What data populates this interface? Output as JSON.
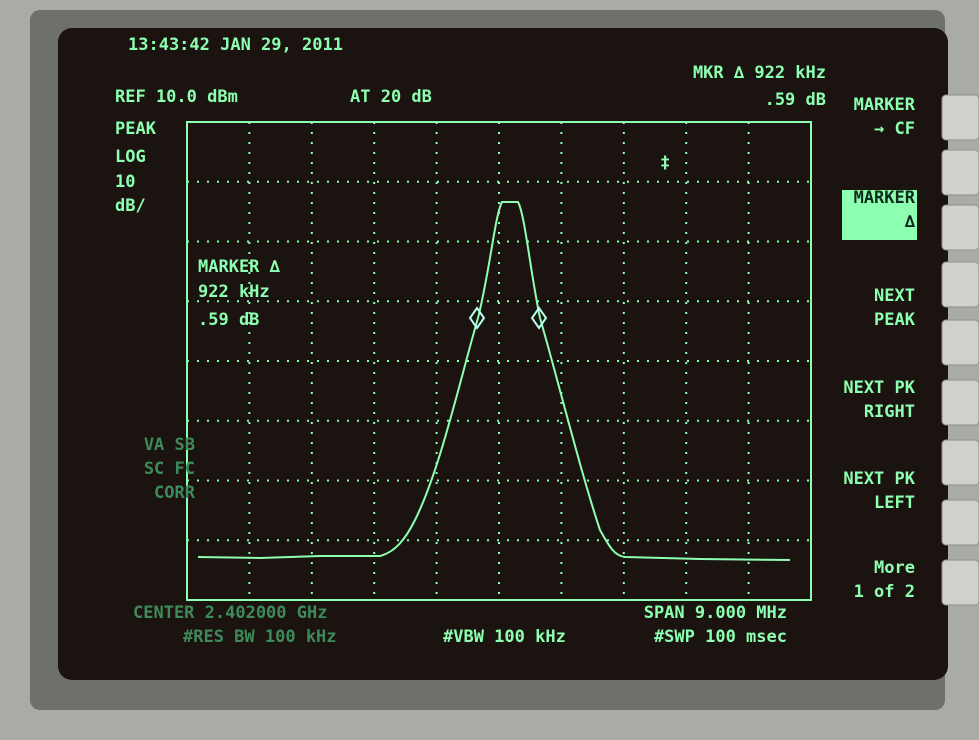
{
  "header": {
    "timestamp": "13:43:42 JAN 29, 2011",
    "ref_level": "REF 10.0 dBm",
    "attenuation": "AT 20 dB",
    "marker_readout": [
      "MKR ∆ 922 kHz",
      ".59 dB"
    ]
  },
  "left_panel": {
    "lines": [
      "PEAK",
      "LOG",
      "10",
      "dB/"
    ],
    "status": [
      "VA SB",
      "SC FC",
      "CORR"
    ]
  },
  "marker_annotation": [
    "MARKER ∆",
    "922 kHz",
    ".59 dB"
  ],
  "footer": {
    "center": "CENTER 2.402000 GHz",
    "res_bw": "#RES BW 100 kHz",
    "vbw": "#VBW 100 kHz",
    "span": "SPAN 9.000 MHz",
    "sweep": "#SWP 100 msec"
  },
  "softkeys": [
    {
      "lines": [
        "MARKER",
        "→ CF"
      ]
    },
    {
      "lines": [
        "MARKER",
        "∆"
      ]
    },
    {
      "lines": [
        "NEXT",
        "PEAK"
      ]
    },
    {
      "lines": [
        "NEXT PK",
        "RIGHT"
      ]
    },
    {
      "lines": [
        "NEXT PK",
        "LEFT"
      ]
    },
    {
      "lines": [
        "More",
        "1 of 2"
      ]
    }
  ]
}
